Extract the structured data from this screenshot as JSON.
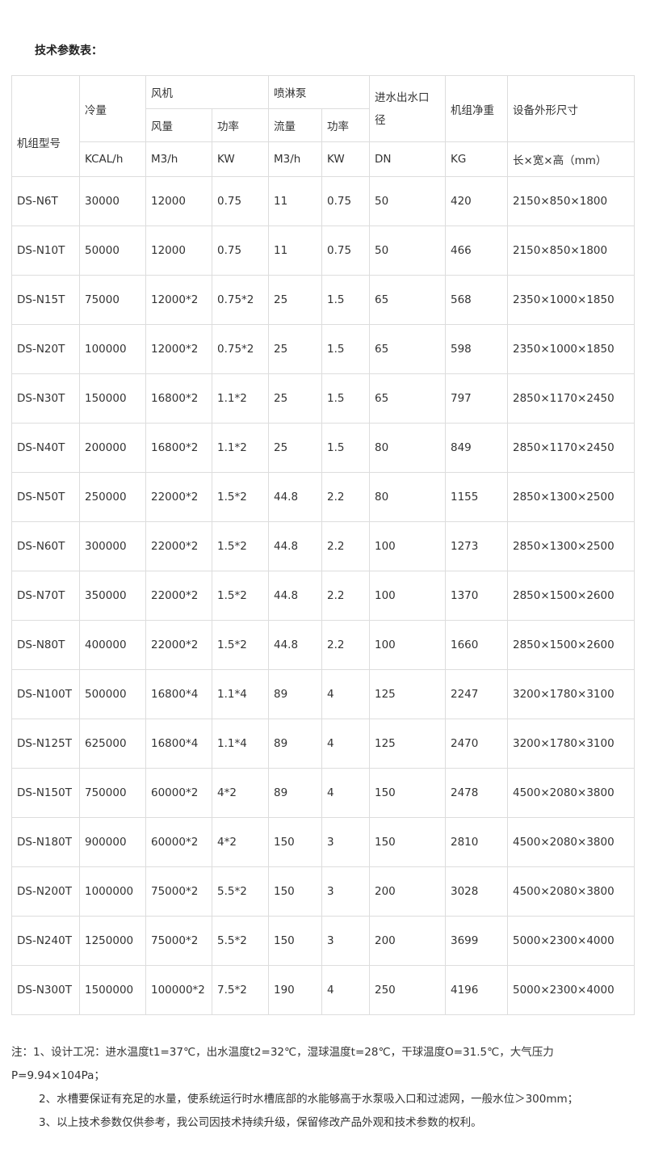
{
  "title": "技术参数表：",
  "header": {
    "model": "机组型号",
    "cooling": "冷量",
    "fan": "风机",
    "fan_air": "风量",
    "fan_power": "功率",
    "pump": "喷淋泵",
    "pump_flow": "流量",
    "pump_power": "功率",
    "pipe": "进水出水口径",
    "weight": "机组净重",
    "size": "设备外形尺寸",
    "units": [
      "KCAL/h",
      "M3/h",
      "KW",
      "M3/h",
      "KW",
      "DN",
      "KG",
      "长×宽×高（mm）"
    ]
  },
  "rows": [
    [
      "DS-N6T",
      "30000",
      "12000",
      "0.75",
      "11",
      "0.75",
      "50",
      "420",
      "2150×850×1800"
    ],
    [
      "DS-N10T",
      "50000",
      "12000",
      "0.75",
      "11",
      "0.75",
      "50",
      "466",
      "2150×850×1800"
    ],
    [
      "DS-N15T",
      "75000",
      "12000*2",
      "0.75*2",
      "25",
      "1.5",
      "65",
      "568",
      "2350×1000×1850"
    ],
    [
      "DS-N20T",
      "100000",
      "12000*2",
      "0.75*2",
      "25",
      "1.5",
      "65",
      "598",
      "2350×1000×1850"
    ],
    [
      "DS-N30T",
      "150000",
      "16800*2",
      "1.1*2",
      "25",
      "1.5",
      "65",
      "797",
      "2850×1170×2450"
    ],
    [
      "DS-N40T",
      "200000",
      "16800*2",
      "1.1*2",
      "25",
      "1.5",
      "80",
      "849",
      "2850×1170×2450"
    ],
    [
      "DS-N50T",
      "250000",
      "22000*2",
      "1.5*2",
      "44.8",
      "2.2",
      "80",
      "1155",
      "2850×1300×2500"
    ],
    [
      "DS-N60T",
      "300000",
      "22000*2",
      "1.5*2",
      "44.8",
      "2.2",
      "100",
      "1273",
      "2850×1300×2500"
    ],
    [
      "DS-N70T",
      "350000",
      "22000*2",
      "1.5*2",
      "44.8",
      "2.2",
      "100",
      "1370",
      "2850×1500×2600"
    ],
    [
      "DS-N80T",
      "400000",
      "22000*2",
      "1.5*2",
      "44.8",
      "2.2",
      "100",
      "1660",
      "2850×1500×2600"
    ],
    [
      "DS-N100T",
      "500000",
      "16800*4",
      "1.1*4",
      "89",
      "4",
      "125",
      "2247",
      "3200×1780×3100"
    ],
    [
      "DS-N125T",
      "625000",
      "16800*4",
      "1.1*4",
      "89",
      "4",
      "125",
      "2470",
      "3200×1780×3100"
    ],
    [
      "DS-N150T",
      "750000",
      "60000*2",
      "4*2",
      "89",
      "4",
      "150",
      "2478",
      "4500×2080×3800"
    ],
    [
      "DS-N180T",
      "900000",
      "60000*2",
      "4*2",
      "150",
      "3",
      "150",
      "2810",
      "4500×2080×3800"
    ],
    [
      "DS-N200T",
      "1000000",
      "75000*2",
      "5.5*2",
      "150",
      "3",
      "200",
      "3028",
      "4500×2080×3800"
    ],
    [
      "DS-N240T",
      "1250000",
      "75000*2",
      "5.5*2",
      "150",
      "3",
      "200",
      "3699",
      "5000×2300×4000"
    ],
    [
      "DS-N300T",
      "1500000",
      "100000*2",
      "7.5*2",
      "190",
      "4",
      "250",
      "4196",
      "5000×2300×4000"
    ]
  ],
  "notes": [
    "注：1、设计工况：进水温度t1=37℃，出水温度t2=32℃，湿球温度t=28℃，干球温度O=31.5℃，大气压力P=9.94×104Pa；",
    "2、水槽要保证有充足的水量，使系统运行时水槽底部的水能够高于水泵吸入口和过滤网，一般水位＞300mm；",
    "3、以上技术参数仅供参考，我公司因技术持续升级，保留修改产品外观和技术参数的权利。"
  ]
}
